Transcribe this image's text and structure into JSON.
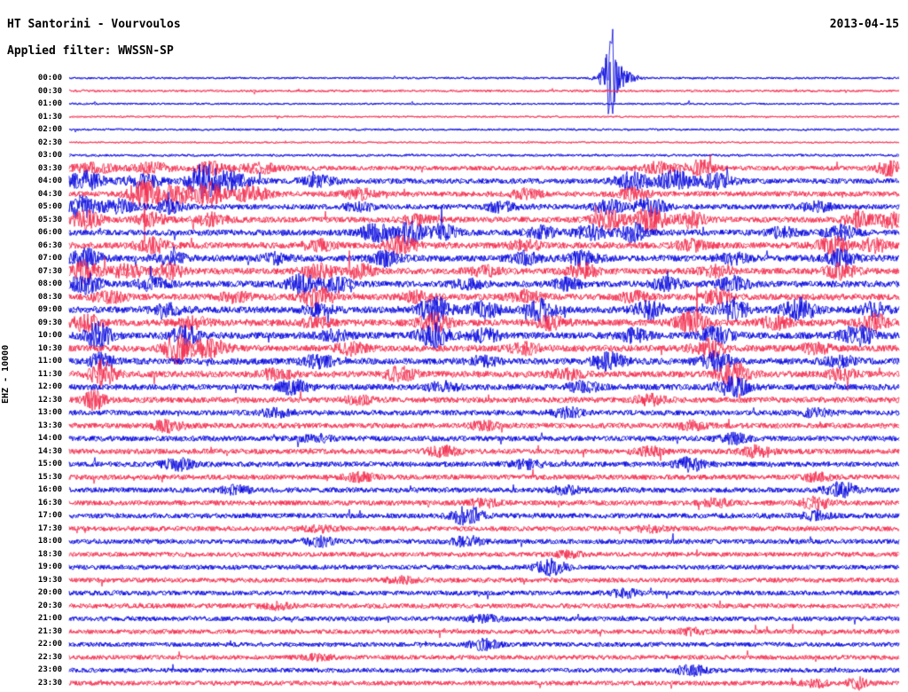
{
  "header": {
    "station": "HT Santorini - Vourvoulos",
    "date": "2013-04-15",
    "filter": "Applied filter: WWSSN-SP",
    "channel_label": "EHZ - 10000"
  },
  "chart_data": {
    "type": "line",
    "subtype": "helicorder-seismogram",
    "station": "HT Santorini - Vourvoulos",
    "channel": "EHZ",
    "gain_label": "10000",
    "filter": "WWSSN-SP",
    "date": "2013-04-15",
    "minutes_per_row": 30,
    "legend": "events are [x_fraction_of_row, peak_amplitude_px, width_px]; base is background noise amplitude in px",
    "colors": {
      "blue": "#0000dd",
      "red": "#f3284a"
    },
    "rows": [
      {
        "time": "00:00",
        "color": "blue",
        "base": 1.2,
        "events": [
          [
            0.645,
            6,
            3
          ],
          [
            0.652,
            34,
            4
          ],
          [
            0.66,
            14,
            12
          ]
        ]
      },
      {
        "time": "00:30",
        "color": "red",
        "base": 1.3,
        "events": []
      },
      {
        "time": "01:00",
        "color": "blue",
        "base": 1.1,
        "events": []
      },
      {
        "time": "01:30",
        "color": "red",
        "base": 1.0,
        "events": []
      },
      {
        "time": "02:00",
        "color": "blue",
        "base": 1.2,
        "events": []
      },
      {
        "time": "02:30",
        "color": "red",
        "base": 1.0,
        "events": []
      },
      {
        "time": "03:00",
        "color": "blue",
        "base": 1.4,
        "events": []
      },
      {
        "time": "03:30",
        "color": "red",
        "base": 2.6,
        "events": [
          [
            0.03,
            5,
            18
          ],
          [
            0.1,
            6,
            14
          ],
          [
            0.17,
            7,
            12
          ],
          [
            0.23,
            5,
            16
          ],
          [
            0.71,
            6,
            14
          ],
          [
            0.76,
            8,
            12
          ],
          [
            0.99,
            9,
            10
          ]
        ]
      },
      {
        "time": "04:00",
        "color": "blue",
        "base": 3.0,
        "events": [
          [
            0.02,
            10,
            14
          ],
          [
            0.09,
            6,
            16
          ],
          [
            0.16,
            16,
            10
          ],
          [
            0.19,
            10,
            18
          ],
          [
            0.3,
            5,
            14
          ],
          [
            0.68,
            9,
            14
          ],
          [
            0.73,
            11,
            12
          ],
          [
            0.78,
            7,
            14
          ]
        ]
      },
      {
        "time": "04:30",
        "color": "red",
        "base": 3.0,
        "events": [
          [
            0.09,
            14,
            12
          ],
          [
            0.13,
            10,
            16
          ],
          [
            0.17,
            13,
            10
          ],
          [
            0.22,
            9,
            14
          ],
          [
            0.35,
            5,
            12
          ],
          [
            0.55,
            5,
            12
          ],
          [
            0.68,
            6,
            12
          ]
        ]
      },
      {
        "time": "05:00",
        "color": "blue",
        "base": 3.0,
        "events": [
          [
            0.015,
            12,
            10
          ],
          [
            0.06,
            7,
            14
          ],
          [
            0.12,
            6,
            12
          ],
          [
            0.35,
            4,
            12
          ],
          [
            0.52,
            5,
            12
          ],
          [
            0.65,
            7,
            12
          ],
          [
            0.7,
            9,
            12
          ],
          [
            0.9,
            5,
            12
          ]
        ]
      },
      {
        "time": "05:30",
        "color": "red",
        "base": 3.2,
        "events": [
          [
            0.02,
            9,
            12
          ],
          [
            0.1,
            6,
            12
          ],
          [
            0.17,
            7,
            12
          ],
          [
            0.42,
            5,
            12
          ],
          [
            0.65,
            10,
            12
          ],
          [
            0.7,
            13,
            12
          ],
          [
            0.75,
            8,
            12
          ],
          [
            0.95,
            9,
            10
          ],
          [
            0.99,
            8,
            10
          ]
        ]
      },
      {
        "time": "06:00",
        "color": "blue",
        "base": 3.4,
        "events": [
          [
            0.37,
            9,
            12
          ],
          [
            0.41,
            12,
            10
          ],
          [
            0.45,
            8,
            12
          ],
          [
            0.57,
            6,
            12
          ],
          [
            0.63,
            8,
            12
          ],
          [
            0.68,
            9,
            10
          ],
          [
            0.86,
            5,
            12
          ],
          [
            0.93,
            7,
            12
          ]
        ]
      },
      {
        "time": "06:30",
        "color": "red",
        "base": 3.6,
        "events": [
          [
            0.1,
            7,
            12
          ],
          [
            0.3,
            5,
            12
          ],
          [
            0.4,
            9,
            12
          ],
          [
            0.55,
            5,
            12
          ],
          [
            0.75,
            5,
            12
          ],
          [
            0.92,
            9,
            12
          ],
          [
            0.97,
            7,
            10
          ]
        ]
      },
      {
        "time": "07:00",
        "color": "blue",
        "base": 3.6,
        "events": [
          [
            0.02,
            9,
            12
          ],
          [
            0.12,
            6,
            12
          ],
          [
            0.25,
            5,
            12
          ],
          [
            0.38,
            7,
            12
          ],
          [
            0.55,
            6,
            12
          ],
          [
            0.62,
            7,
            12
          ],
          [
            0.8,
            5,
            12
          ],
          [
            0.93,
            8,
            12
          ]
        ]
      },
      {
        "time": "07:30",
        "color": "red",
        "base": 3.6,
        "events": [
          [
            0.02,
            11,
            10
          ],
          [
            0.07,
            7,
            12
          ],
          [
            0.12,
            8,
            12
          ],
          [
            0.3,
            7,
            12
          ],
          [
            0.35,
            8,
            10
          ],
          [
            0.5,
            5,
            12
          ],
          [
            0.62,
            7,
            12
          ],
          [
            0.78,
            5,
            12
          ],
          [
            0.93,
            7,
            12
          ]
        ]
      },
      {
        "time": "08:00",
        "color": "blue",
        "base": 3.6,
        "events": [
          [
            0.02,
            9,
            12
          ],
          [
            0.1,
            6,
            12
          ],
          [
            0.28,
            9,
            12
          ],
          [
            0.32,
            7,
            12
          ],
          [
            0.48,
            5,
            12
          ],
          [
            0.6,
            5,
            12
          ],
          [
            0.72,
            6,
            12
          ],
          [
            0.8,
            7,
            12
          ]
        ]
      },
      {
        "time": "08:30",
        "color": "red",
        "base": 3.6,
        "events": [
          [
            0.05,
            5,
            12
          ],
          [
            0.2,
            5,
            12
          ],
          [
            0.3,
            11,
            12
          ],
          [
            0.42,
            5,
            12
          ],
          [
            0.55,
            6,
            12
          ],
          [
            0.68,
            5,
            12
          ],
          [
            0.78,
            7,
            12
          ]
        ]
      },
      {
        "time": "09:00",
        "color": "blue",
        "base": 3.8,
        "events": [
          [
            0.12,
            5,
            12
          ],
          [
            0.3,
            5,
            12
          ],
          [
            0.44,
            13,
            12
          ],
          [
            0.5,
            8,
            12
          ],
          [
            0.57,
            11,
            12
          ],
          [
            0.7,
            9,
            12
          ],
          [
            0.8,
            11,
            12
          ],
          [
            0.88,
            11,
            12
          ],
          [
            0.97,
            7,
            10
          ]
        ]
      },
      {
        "time": "09:30",
        "color": "red",
        "base": 3.8,
        "events": [
          [
            0.02,
            9,
            10
          ],
          [
            0.15,
            5,
            12
          ],
          [
            0.3,
            5,
            12
          ],
          [
            0.44,
            9,
            12
          ],
          [
            0.58,
            6,
            12
          ],
          [
            0.75,
            11,
            12
          ],
          [
            0.85,
            6,
            12
          ],
          [
            0.97,
            9,
            10
          ]
        ]
      },
      {
        "time": "10:00",
        "color": "blue",
        "base": 3.8,
        "events": [
          [
            0.035,
            13,
            10
          ],
          [
            0.14,
            9,
            12
          ],
          [
            0.32,
            5,
            12
          ],
          [
            0.44,
            13,
            12
          ],
          [
            0.5,
            7,
            12
          ],
          [
            0.68,
            6,
            12
          ],
          [
            0.78,
            9,
            12
          ],
          [
            0.95,
            11,
            12
          ]
        ]
      },
      {
        "time": "10:30",
        "color": "red",
        "base": 3.6,
        "events": [
          [
            0.13,
            15,
            10
          ],
          [
            0.17,
            9,
            14
          ],
          [
            0.34,
            6,
            12
          ],
          [
            0.55,
            5,
            12
          ],
          [
            0.77,
            9,
            12
          ],
          [
            0.9,
            5,
            12
          ]
        ]
      },
      {
        "time": "11:00",
        "color": "blue",
        "base": 3.6,
        "events": [
          [
            0.04,
            8,
            10
          ],
          [
            0.3,
            6,
            12
          ],
          [
            0.5,
            5,
            12
          ],
          [
            0.65,
            9,
            12
          ],
          [
            0.78,
            9,
            12
          ],
          [
            0.93,
            5,
            12
          ]
        ]
      },
      {
        "time": "11:30",
        "color": "red",
        "base": 3.6,
        "events": [
          [
            0.04,
            14,
            10
          ],
          [
            0.25,
            5,
            12
          ],
          [
            0.4,
            7,
            12
          ],
          [
            0.6,
            5,
            12
          ],
          [
            0.8,
            12,
            12
          ],
          [
            0.93,
            5,
            12
          ]
        ]
      },
      {
        "time": "12:00",
        "color": "blue",
        "base": 3.4,
        "events": [
          [
            0.27,
            7,
            12
          ],
          [
            0.45,
            5,
            12
          ],
          [
            0.62,
            5,
            12
          ],
          [
            0.8,
            10,
            12
          ]
        ]
      },
      {
        "time": "12:30",
        "color": "red",
        "base": 3.2,
        "events": [
          [
            0.03,
            10,
            8
          ],
          [
            0.35,
            4,
            12
          ],
          [
            0.7,
            5,
            12
          ]
        ]
      },
      {
        "time": "13:00",
        "color": "blue",
        "base": 3.0,
        "events": [
          [
            0.25,
            4,
            12
          ],
          [
            0.6,
            5,
            12
          ],
          [
            0.9,
            4,
            12
          ]
        ]
      },
      {
        "time": "13:30",
        "color": "red",
        "base": 3.0,
        "events": [
          [
            0.12,
            6,
            12
          ],
          [
            0.5,
            4,
            12
          ],
          [
            0.75,
            4,
            12
          ]
        ]
      },
      {
        "time": "14:00",
        "color": "blue",
        "base": 3.0,
        "events": [
          [
            0.3,
            4,
            12
          ],
          [
            0.8,
            5,
            12
          ]
        ]
      },
      {
        "time": "14:30",
        "color": "red",
        "base": 3.0,
        "events": [
          [
            0.45,
            5,
            12
          ],
          [
            0.7,
            4,
            12
          ],
          [
            0.83,
            6,
            12
          ]
        ]
      },
      {
        "time": "15:00",
        "color": "blue",
        "base": 3.0,
        "events": [
          [
            0.13,
            6,
            12
          ],
          [
            0.55,
            4,
            12
          ],
          [
            0.75,
            7,
            12
          ]
        ]
      },
      {
        "time": "15:30",
        "color": "red",
        "base": 2.9,
        "events": [
          [
            0.35,
            4,
            12
          ],
          [
            0.9,
            4,
            12
          ]
        ]
      },
      {
        "time": "16:00",
        "color": "blue",
        "base": 2.9,
        "events": [
          [
            0.2,
            4,
            12
          ],
          [
            0.6,
            4,
            12
          ],
          [
            0.93,
            8,
            12
          ]
        ]
      },
      {
        "time": "16:30",
        "color": "red",
        "base": 2.9,
        "events": [
          [
            0.5,
            4,
            12
          ],
          [
            0.78,
            4,
            12
          ],
          [
            0.9,
            6,
            12
          ]
        ]
      },
      {
        "time": "17:00",
        "color": "blue",
        "base": 2.9,
        "events": [
          [
            0.48,
            10,
            12
          ],
          [
            0.9,
            4,
            12
          ]
        ]
      },
      {
        "time": "17:30",
        "color": "red",
        "base": 2.8,
        "events": [
          [
            0.3,
            3,
            12
          ],
          [
            0.7,
            3,
            12
          ]
        ]
      },
      {
        "time": "18:00",
        "color": "blue",
        "base": 2.8,
        "events": [
          [
            0.3,
            5,
            12
          ],
          [
            0.48,
            5,
            12
          ]
        ]
      },
      {
        "time": "18:30",
        "color": "red",
        "base": 2.7,
        "events": [
          [
            0.6,
            3,
            12
          ]
        ]
      },
      {
        "time": "19:00",
        "color": "blue",
        "base": 2.7,
        "events": [
          [
            0.58,
            8,
            12
          ]
        ]
      },
      {
        "time": "19:30",
        "color": "red",
        "base": 2.7,
        "events": [
          [
            0.4,
            3,
            12
          ]
        ]
      },
      {
        "time": "20:00",
        "color": "blue",
        "base": 2.7,
        "events": [
          [
            0.67,
            4,
            12
          ]
        ]
      },
      {
        "time": "20:30",
        "color": "red",
        "base": 2.7,
        "events": [
          [
            0.25,
            3,
            12
          ]
        ]
      },
      {
        "time": "21:00",
        "color": "blue",
        "base": 2.7,
        "events": [
          [
            0.5,
            4,
            12
          ]
        ]
      },
      {
        "time": "21:30",
        "color": "red",
        "base": 2.6,
        "events": [
          [
            0.75,
            3,
            12
          ]
        ]
      },
      {
        "time": "22:00",
        "color": "blue",
        "base": 2.6,
        "events": [
          [
            0.5,
            5,
            12
          ]
        ]
      },
      {
        "time": "22:30",
        "color": "red",
        "base": 2.6,
        "events": [
          [
            0.3,
            3,
            12
          ]
        ]
      },
      {
        "time": "23:00",
        "color": "blue",
        "base": 2.6,
        "events": [
          [
            0.75,
            5,
            12
          ]
        ]
      },
      {
        "time": "23:30",
        "color": "red",
        "base": 2.6,
        "events": [
          [
            0.9,
            4,
            10
          ],
          [
            0.95,
            6,
            8
          ]
        ]
      }
    ]
  }
}
